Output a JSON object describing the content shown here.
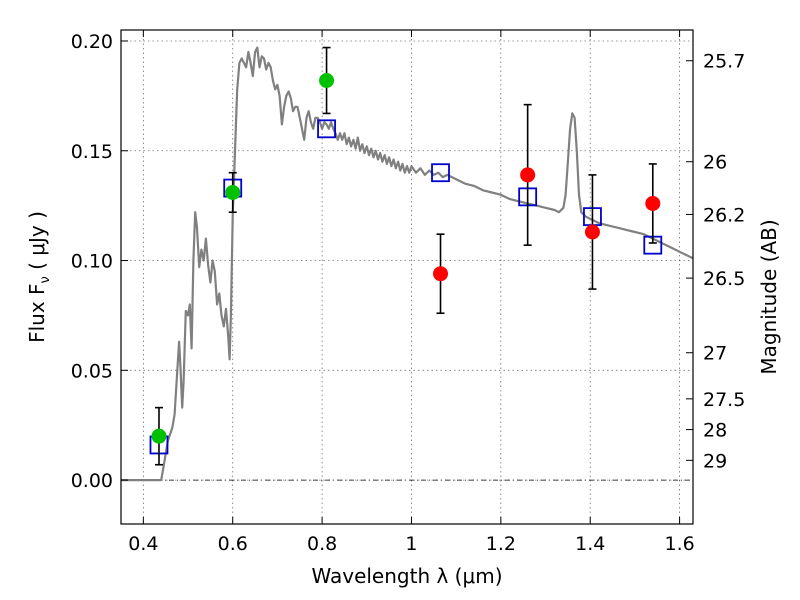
{
  "chart_data": {
    "type": "scatter",
    "xlabel": "Wavelength  λ (μm)",
    "ylabel": "Flux  F",
    "ylabel_sub": "ν",
    "ylabel_unit": "( μJy )",
    "right_ylabel": "Magnitude (AB)",
    "xlim": [
      0.35,
      1.63
    ],
    "ylim": [
      -0.02,
      0.205
    ],
    "x_ticks": [
      0.4,
      0.6,
      0.8,
      1.0,
      1.2,
      1.4,
      1.6
    ],
    "x_tick_labels": [
      "0.4",
      "0.6",
      "0.8",
      "1",
      "1.2",
      "1.4",
      "1.6"
    ],
    "y_ticks": [
      0.0,
      0.05,
      0.1,
      0.15,
      0.2
    ],
    "y_tick_labels": [
      "0.00",
      "0.05",
      "0.10",
      "0.15",
      "0.20"
    ],
    "right_ticks": [
      {
        "label": "25.7",
        "flux": 0.191
      },
      {
        "label": "26",
        "flux": 0.145
      },
      {
        "label": "26.2",
        "flux": 0.121
      },
      {
        "label": "26.5",
        "flux": 0.092
      },
      {
        "label": "27",
        "flux": 0.058
      },
      {
        "label": "27.5",
        "flux": 0.037
      },
      {
        "label": "28",
        "flux": 0.023
      },
      {
        "label": "29",
        "flux": 0.009
      }
    ],
    "grid": true,
    "zero_line": true,
    "colors": {
      "model": "#808080",
      "green": "#00c000",
      "red": "#ff0000",
      "box": "#0000cc",
      "errorbar": "#000000"
    },
    "series": [
      {
        "kind": "line",
        "points": [
          [
            0.35,
            0.0
          ],
          [
            0.43,
            0.0
          ],
          [
            0.44,
            0.0
          ],
          [
            0.445,
            0.006
          ],
          [
            0.455,
            0.018
          ],
          [
            0.465,
            0.024
          ],
          [
            0.47,
            0.03
          ],
          [
            0.475,
            0.047
          ],
          [
            0.48,
            0.063
          ],
          [
            0.483,
            0.052
          ],
          [
            0.487,
            0.033
          ],
          [
            0.49,
            0.045
          ],
          [
            0.495,
            0.077
          ],
          [
            0.5,
            0.075
          ],
          [
            0.504,
            0.08
          ],
          [
            0.508,
            0.06
          ],
          [
            0.512,
            0.1
          ],
          [
            0.516,
            0.122
          ],
          [
            0.52,
            0.115
          ],
          [
            0.525,
            0.097
          ],
          [
            0.53,
            0.105
          ],
          [
            0.535,
            0.1
          ],
          [
            0.54,
            0.11
          ],
          [
            0.545,
            0.098
          ],
          [
            0.55,
            0.09
          ],
          [
            0.555,
            0.1
          ],
          [
            0.56,
            0.095
          ],
          [
            0.565,
            0.08
          ],
          [
            0.57,
            0.085
          ],
          [
            0.575,
            0.075
          ],
          [
            0.58,
            0.07
          ],
          [
            0.585,
            0.078
          ],
          [
            0.59,
            0.065
          ],
          [
            0.593,
            0.055
          ],
          [
            0.596,
            0.075
          ],
          [
            0.6,
            0.12
          ],
          [
            0.605,
            0.15
          ],
          [
            0.61,
            0.178
          ],
          [
            0.615,
            0.19
          ],
          [
            0.62,
            0.192
          ],
          [
            0.625,
            0.19
          ],
          [
            0.63,
            0.188
          ],
          [
            0.635,
            0.195
          ],
          [
            0.64,
            0.19
          ],
          [
            0.645,
            0.184
          ],
          [
            0.65,
            0.195
          ],
          [
            0.655,
            0.197
          ],
          [
            0.66,
            0.188
          ],
          [
            0.665,
            0.193
          ],
          [
            0.67,
            0.192
          ],
          [
            0.675,
            0.187
          ],
          [
            0.68,
            0.19
          ],
          [
            0.685,
            0.188
          ],
          [
            0.69,
            0.182
          ],
          [
            0.695,
            0.178
          ],
          [
            0.7,
            0.18
          ],
          [
            0.705,
            0.175
          ],
          [
            0.71,
            0.162
          ],
          [
            0.715,
            0.17
          ],
          [
            0.72,
            0.175
          ],
          [
            0.725,
            0.177
          ],
          [
            0.73,
            0.174
          ],
          [
            0.735,
            0.168
          ],
          [
            0.74,
            0.17
          ],
          [
            0.745,
            0.17
          ],
          [
            0.75,
            0.165
          ],
          [
            0.755,
            0.16
          ],
          [
            0.76,
            0.155
          ],
          [
            0.765,
            0.165
          ],
          [
            0.77,
            0.168
          ],
          [
            0.775,
            0.163
          ],
          [
            0.78,
            0.16
          ],
          [
            0.785,
            0.165
          ],
          [
            0.79,
            0.165
          ],
          [
            0.795,
            0.163
          ],
          [
            0.8,
            0.16
          ],
          [
            0.805,
            0.163
          ],
          [
            0.81,
            0.162
          ],
          [
            0.815,
            0.16
          ],
          [
            0.82,
            0.163
          ],
          [
            0.825,
            0.16
          ],
          [
            0.83,
            0.158
          ],
          [
            0.835,
            0.155
          ],
          [
            0.84,
            0.158
          ],
          [
            0.845,
            0.155
          ],
          [
            0.85,
            0.158
          ],
          [
            0.855,
            0.153
          ],
          [
            0.86,
            0.156
          ],
          [
            0.865,
            0.152
          ],
          [
            0.87,
            0.155
          ],
          [
            0.875,
            0.151
          ],
          [
            0.88,
            0.156
          ],
          [
            0.885,
            0.15
          ],
          [
            0.89,
            0.153
          ],
          [
            0.895,
            0.149
          ],
          [
            0.9,
            0.152
          ],
          [
            0.905,
            0.148
          ],
          [
            0.91,
            0.151
          ],
          [
            0.915,
            0.147
          ],
          [
            0.92,
            0.15
          ],
          [
            0.925,
            0.146
          ],
          [
            0.93,
            0.149
          ],
          [
            0.935,
            0.145
          ],
          [
            0.94,
            0.148
          ],
          [
            0.945,
            0.144
          ],
          [
            0.95,
            0.147
          ],
          [
            0.955,
            0.143
          ],
          [
            0.96,
            0.146
          ],
          [
            0.965,
            0.142
          ],
          [
            0.97,
            0.145
          ],
          [
            0.975,
            0.141
          ],
          [
            0.98,
            0.144
          ],
          [
            0.985,
            0.14
          ],
          [
            0.99,
            0.143
          ],
          [
            0.995,
            0.14
          ],
          [
            1.0,
            0.143
          ],
          [
            1.01,
            0.14
          ],
          [
            1.02,
            0.142
          ],
          [
            1.03,
            0.139
          ],
          [
            1.04,
            0.141
          ],
          [
            1.05,
            0.139
          ],
          [
            1.06,
            0.14
          ],
          [
            1.07,
            0.138
          ],
          [
            1.08,
            0.139
          ],
          [
            1.1,
            0.137
          ],
          [
            1.12,
            0.135
          ],
          [
            1.14,
            0.134
          ],
          [
            1.16,
            0.132
          ],
          [
            1.18,
            0.131
          ],
          [
            1.2,
            0.13
          ],
          [
            1.22,
            0.128
          ],
          [
            1.24,
            0.127
          ],
          [
            1.26,
            0.126
          ],
          [
            1.28,
            0.125
          ],
          [
            1.3,
            0.124
          ],
          [
            1.32,
            0.123
          ],
          [
            1.33,
            0.122
          ],
          [
            1.34,
            0.124
          ],
          [
            1.345,
            0.13
          ],
          [
            1.35,
            0.145
          ],
          [
            1.355,
            0.16
          ],
          [
            1.36,
            0.167
          ],
          [
            1.365,
            0.165
          ],
          [
            1.37,
            0.15
          ],
          [
            1.375,
            0.13
          ],
          [
            1.38,
            0.122
          ],
          [
            1.39,
            0.12
          ],
          [
            1.4,
            0.119
          ],
          [
            1.42,
            0.117
          ],
          [
            1.44,
            0.116
          ],
          [
            1.46,
            0.115
          ],
          [
            1.48,
            0.114
          ],
          [
            1.5,
            0.113
          ],
          [
            1.52,
            0.112
          ],
          [
            1.54,
            0.11
          ],
          [
            1.56,
            0.108
          ],
          [
            1.58,
            0.106
          ],
          [
            1.6,
            0.104
          ],
          [
            1.63,
            0.101
          ]
        ]
      },
      {
        "kind": "model_boxes",
        "points": [
          [
            0.435,
            0.016
          ],
          [
            0.6,
            0.133
          ],
          [
            0.81,
            0.16
          ],
          [
            1.065,
            0.14
          ],
          [
            1.26,
            0.129
          ],
          [
            1.405,
            0.12
          ],
          [
            1.54,
            0.107
          ]
        ]
      },
      {
        "kind": "green_points",
        "points": [
          {
            "x": 0.435,
            "y": 0.02,
            "err": 0.013
          },
          {
            "x": 0.6,
            "y": 0.131,
            "err": 0.009
          },
          {
            "x": 0.81,
            "y": 0.182,
            "err": 0.015
          }
        ]
      },
      {
        "kind": "red_points",
        "points": [
          {
            "x": 1.065,
            "y": 0.094,
            "err": 0.018
          },
          {
            "x": 1.26,
            "y": 0.139,
            "err": 0.032
          },
          {
            "x": 1.405,
            "y": 0.113,
            "err": 0.026
          },
          {
            "x": 1.54,
            "y": 0.126,
            "err": 0.018
          }
        ]
      }
    ]
  }
}
